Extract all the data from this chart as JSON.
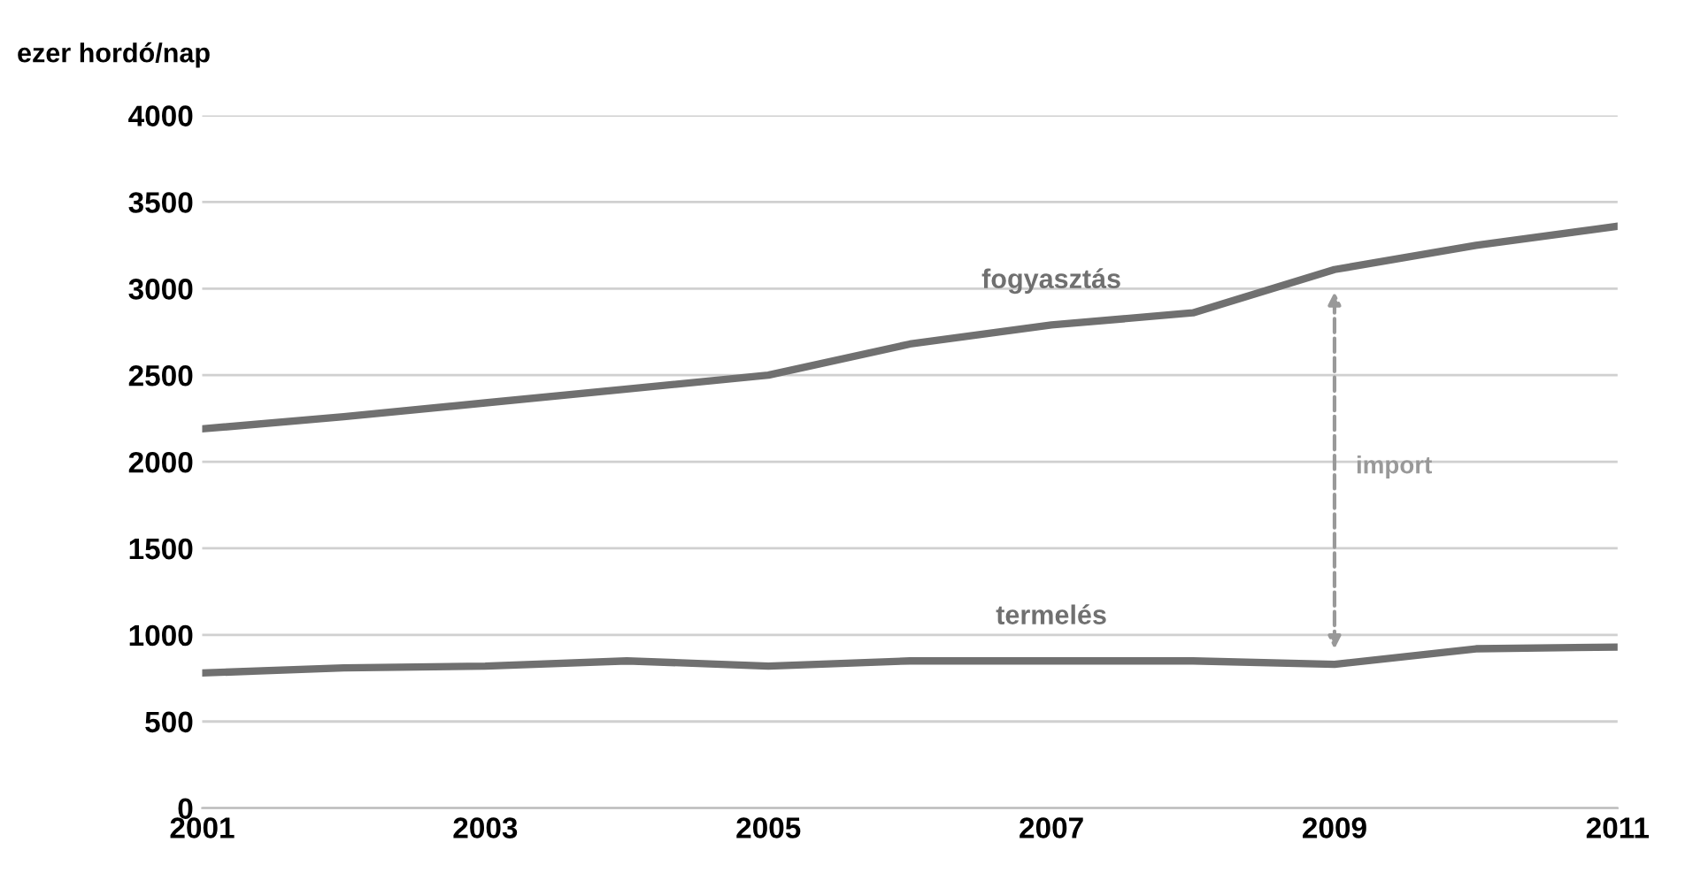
{
  "chart_data": {
    "type": "line",
    "ylabel": "ezer hordó/nap",
    "x": [
      2001,
      2002,
      2003,
      2004,
      2005,
      2006,
      2007,
      2008,
      2009,
      2010,
      2011
    ],
    "series": [
      {
        "name": "fogyasztás",
        "color": "#707070",
        "values": [
          2190,
          2260,
          2340,
          2420,
          2500,
          2680,
          2790,
          2860,
          3110,
          3250,
          3360
        ]
      },
      {
        "name": "termelés",
        "color": "#707070",
        "values": [
          780,
          810,
          820,
          850,
          820,
          850,
          850,
          850,
          830,
          920,
          930
        ]
      }
    ],
    "annotations": [
      "import"
    ],
    "xlim": [
      2001,
      2011
    ],
    "xticks": [
      2001,
      2003,
      2005,
      2007,
      2009,
      2011
    ],
    "ylim": [
      0,
      4000
    ],
    "yticks": [
      0,
      500,
      1000,
      1500,
      2000,
      2500,
      3000,
      3500,
      4000
    ],
    "grid": "y",
    "legend": false,
    "marker": "none",
    "line_style": "solid"
  }
}
